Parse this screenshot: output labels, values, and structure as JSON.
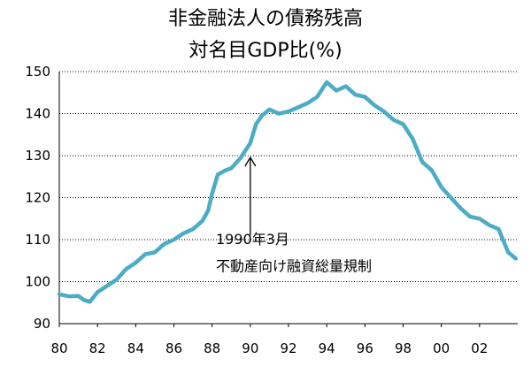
{
  "chart_data": {
    "type": "line",
    "title_lines": [
      "非金融法人の債務残高",
      "対名目GDP比(%)"
    ],
    "xlabel": "",
    "ylabel": "",
    "xlim": [
      1980,
      2004
    ],
    "ylim": [
      90,
      150
    ],
    "y_ticks": [
      90,
      100,
      110,
      120,
      130,
      140,
      150
    ],
    "x_ticks": [
      {
        "value": 1980,
        "label": "80"
      },
      {
        "value": 1982,
        "label": "82"
      },
      {
        "value": 1984,
        "label": "84"
      },
      {
        "value": 1986,
        "label": "86"
      },
      {
        "value": 1988,
        "label": "88"
      },
      {
        "value": 1990,
        "label": "90"
      },
      {
        "value": 1992,
        "label": "92"
      },
      {
        "value": 1994,
        "label": "94"
      },
      {
        "value": 1996,
        "label": "96"
      },
      {
        "value": 1998,
        "label": "98"
      },
      {
        "value": 2000,
        "label": "00"
      },
      {
        "value": 2002,
        "label": "02"
      }
    ],
    "grid": true,
    "series": [
      {
        "name": "非金融法人の債務残高 対名目GDP比",
        "color": "#4BACC6",
        "points": [
          [
            1980.0,
            97.0
          ],
          [
            1980.5,
            96.5
          ],
          [
            1981.0,
            96.6
          ],
          [
            1981.3,
            95.6
          ],
          [
            1981.6,
            95.2
          ],
          [
            1982.0,
            97.5
          ],
          [
            1982.5,
            99.0
          ],
          [
            1983.0,
            100.5
          ],
          [
            1983.5,
            103.0
          ],
          [
            1984.0,
            104.5
          ],
          [
            1984.5,
            106.5
          ],
          [
            1985.0,
            107.0
          ],
          [
            1985.5,
            109.0
          ],
          [
            1986.0,
            110.0
          ],
          [
            1986.5,
            111.5
          ],
          [
            1987.0,
            112.5
          ],
          [
            1987.5,
            114.5
          ],
          [
            1987.8,
            117.0
          ],
          [
            1988.0,
            121.0
          ],
          [
            1988.3,
            125.5
          ],
          [
            1988.7,
            126.5
          ],
          [
            1989.0,
            127.0
          ],
          [
            1989.5,
            129.5
          ],
          [
            1990.0,
            133.0
          ],
          [
            1990.3,
            137.5
          ],
          [
            1990.6,
            139.5
          ],
          [
            1991.0,
            141.0
          ],
          [
            1991.5,
            140.0
          ],
          [
            1992.0,
            140.5
          ],
          [
            1992.5,
            141.5
          ],
          [
            1993.0,
            142.5
          ],
          [
            1993.5,
            144.0
          ],
          [
            1994.0,
            147.5
          ],
          [
            1994.5,
            145.5
          ],
          [
            1995.0,
            146.5
          ],
          [
            1995.5,
            144.5
          ],
          [
            1996.0,
            144.0
          ],
          [
            1996.5,
            142.0
          ],
          [
            1997.0,
            140.5
          ],
          [
            1997.5,
            138.5
          ],
          [
            1998.0,
            137.5
          ],
          [
            1998.5,
            134.0
          ],
          [
            1999.0,
            128.5
          ],
          [
            1999.5,
            126.5
          ],
          [
            2000.0,
            122.5
          ],
          [
            2000.5,
            120.0
          ],
          [
            2001.0,
            117.5
          ],
          [
            2001.5,
            115.5
          ],
          [
            2002.0,
            115.0
          ],
          [
            2002.5,
            113.5
          ],
          [
            2003.0,
            112.5
          ],
          [
            2003.5,
            107.0
          ],
          [
            2003.9,
            105.5
          ]
        ]
      }
    ],
    "annotation": {
      "lines": [
        "1990年3月",
        "不動産向け融資総量規制"
      ],
      "arrow_to": [
        1990.0,
        130.0
      ]
    }
  }
}
